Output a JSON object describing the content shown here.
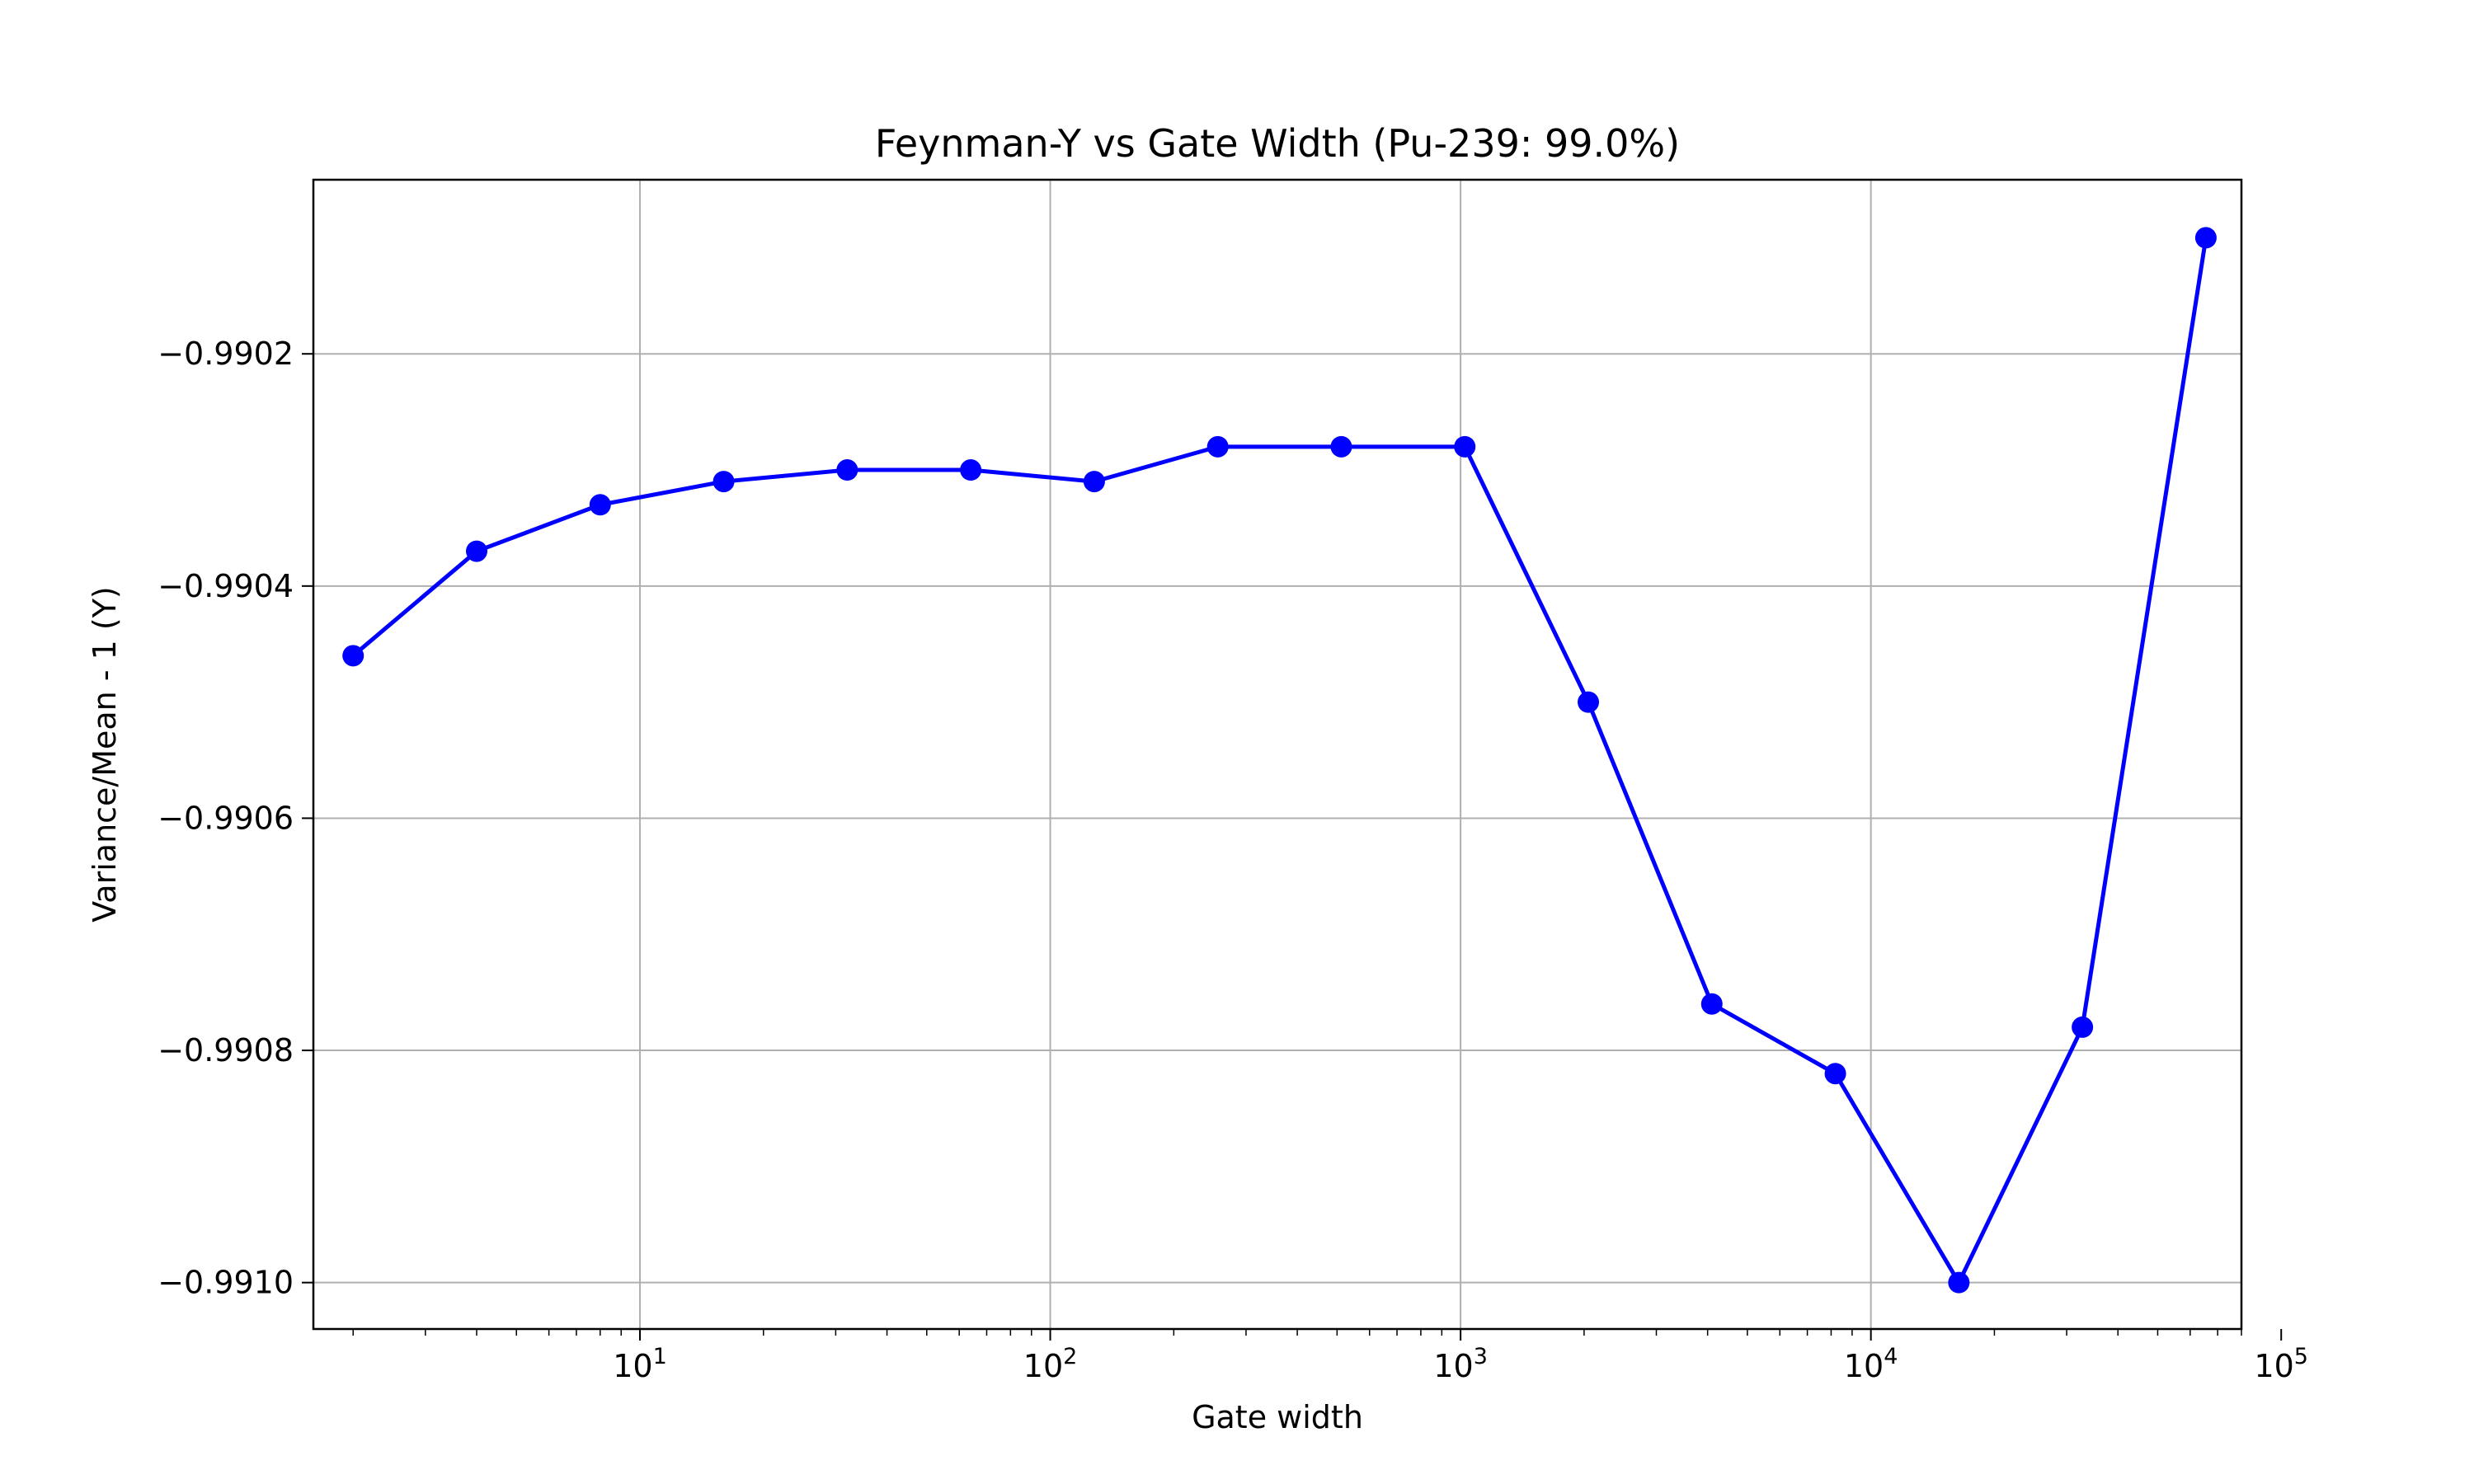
{
  "chart_data": {
    "type": "line",
    "title": "Feynman-Y vs Gate Width (Pu-239: 99.0%)",
    "xlabel": "Gate width",
    "ylabel": "Variance/Mean - 1 (Y)",
    "xscale": "log",
    "xlim": [
      1.6,
      80000
    ],
    "ylim": [
      -0.99104,
      -0.99005
    ],
    "grid": true,
    "line_color": "#0000ff",
    "marker": "circle",
    "x_ticks": [
      {
        "value": 10,
        "base": "10",
        "exp": "1"
      },
      {
        "value": 100,
        "base": "10",
        "exp": "2"
      },
      {
        "value": 1000,
        "base": "10",
        "exp": "3"
      },
      {
        "value": 10000,
        "base": "10",
        "exp": "4"
      },
      {
        "value": 100000,
        "base": "10",
        "exp": "5"
      }
    ],
    "y_ticks": [
      {
        "value": -0.9902,
        "label": "−0.9902"
      },
      {
        "value": -0.9904,
        "label": "−0.9904"
      },
      {
        "value": -0.9906,
        "label": "−0.9906"
      },
      {
        "value": -0.9908,
        "label": "−0.9908"
      },
      {
        "value": -0.991,
        "label": "−0.9910"
      }
    ],
    "series": [
      {
        "x": [
          2,
          4,
          8,
          16,
          32,
          64,
          128,
          256,
          512,
          1024,
          2048,
          4096,
          8192,
          16384,
          32768,
          65536
        ],
        "y": [
          -0.99046,
          -0.99037,
          -0.99033,
          -0.99031,
          -0.9903,
          -0.9903,
          -0.99031,
          -0.99028,
          -0.99028,
          -0.99028,
          -0.9905,
          -0.99076,
          -0.99082,
          -0.991,
          -0.99078,
          -0.9901
        ]
      }
    ]
  }
}
